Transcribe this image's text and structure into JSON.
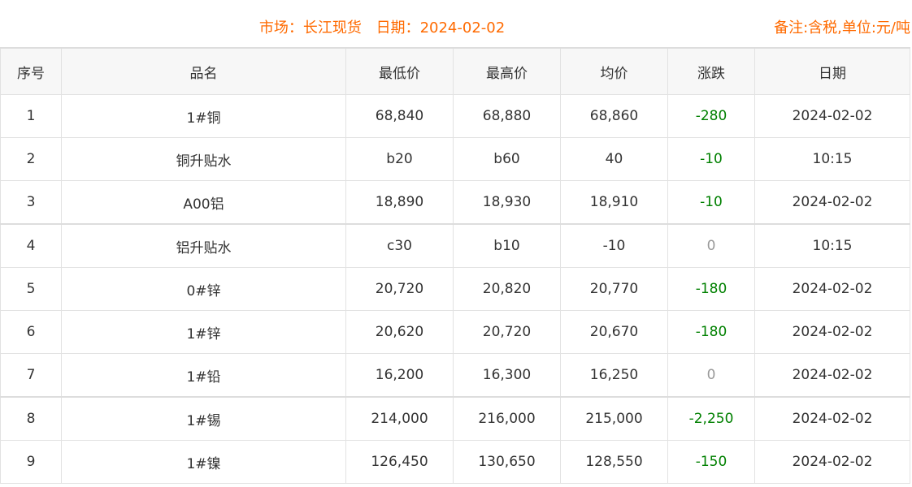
{
  "header": {
    "market_label": "市场：",
    "market": "长江现货",
    "date_label": "日期：",
    "date": "2024-02-02",
    "note": "备注:含税,单位:元/吨"
  },
  "colors": {
    "title": "#ff6a00",
    "down": "#008000",
    "zero": "#999999"
  },
  "columns": [
    "序号",
    "品名",
    "最低价",
    "最高价",
    "均价",
    "涨跌",
    "日期"
  ],
  "rows": [
    {
      "no": "1",
      "name": "1#铜",
      "low": "68,840",
      "high": "68,880",
      "avg": "68,860",
      "change": "-280",
      "date": "2024-02-02"
    },
    {
      "no": "2",
      "name": "铜升贴水",
      "low": "b20",
      "high": "b60",
      "avg": "40",
      "change": "-10",
      "date": "10:15"
    },
    {
      "no": "3",
      "name": "A00铝",
      "low": "18,890",
      "high": "18,930",
      "avg": "18,910",
      "change": "-10",
      "date": "2024-02-02"
    },
    {
      "no": "4",
      "name": "铝升贴水",
      "low": "c30",
      "high": "b10",
      "avg": "-10",
      "change": "0",
      "date": "10:15"
    },
    {
      "no": "5",
      "name": "0#锌",
      "low": "20,720",
      "high": "20,820",
      "avg": "20,770",
      "change": "-180",
      "date": "2024-02-02"
    },
    {
      "no": "6",
      "name": "1#锌",
      "low": "20,620",
      "high": "20,720",
      "avg": "20,670",
      "change": "-180",
      "date": "2024-02-02"
    },
    {
      "no": "7",
      "name": "1#铅",
      "low": "16,200",
      "high": "16,300",
      "avg": "16,250",
      "change": "0",
      "date": "2024-02-02"
    },
    {
      "no": "8",
      "name": "1#锡",
      "low": "214,000",
      "high": "216,000",
      "avg": "215,000",
      "change": "-2,250",
      "date": "2024-02-02"
    },
    {
      "no": "9",
      "name": "1#镍",
      "low": "126,450",
      "high": "130,650",
      "avg": "128,550",
      "change": "-150",
      "date": "2024-02-02"
    }
  ]
}
